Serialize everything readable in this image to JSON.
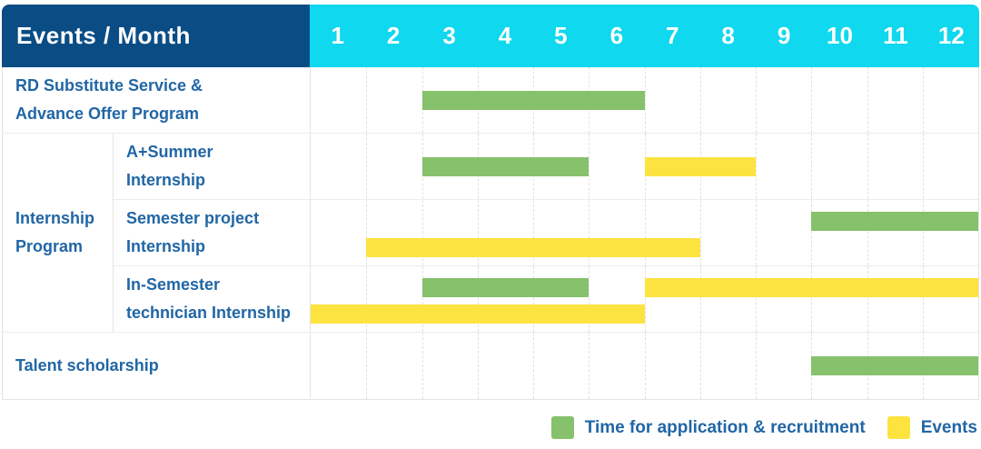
{
  "colors": {
    "header_navy": "#0a4d85",
    "header_cyan": "#10d8ee",
    "label_blue": "#2166a5",
    "application_green": "#86c16b",
    "events_yellow": "#fde340",
    "grid_line": "#e2e2e2"
  },
  "chart_data": {
    "type": "gantt",
    "title": "Events / Month",
    "unit": "month",
    "axis_range": [
      1,
      12
    ],
    "months": [
      "1",
      "2",
      "3",
      "4",
      "5",
      "6",
      "7",
      "8",
      "9",
      "10",
      "11",
      "12"
    ],
    "series": {
      "application": {
        "label": "Time for application & recruitment",
        "color": "#86c16b"
      },
      "events": {
        "label": "Events",
        "color": "#fde340"
      }
    },
    "rows": [
      {
        "label": "RD Substitute Service &\nAdvance Offer Program",
        "in_group": false,
        "bars": [
          {
            "series": "application",
            "start_month": 3,
            "end_month": 6,
            "track": "center"
          }
        ]
      },
      {
        "label": "A+Summer\nInternship",
        "in_group": true,
        "group": "Internship\nProgram",
        "group_span": 3,
        "bars": [
          {
            "series": "application",
            "start_month": 3,
            "end_month": 5,
            "track": "center"
          },
          {
            "series": "events",
            "start_month": 7,
            "end_month": 8,
            "track": "center"
          }
        ]
      },
      {
        "label": "Semester project\nInternship",
        "in_group": true,
        "bars": [
          {
            "series": "application",
            "start_month": 10,
            "end_month": 12,
            "track": "top"
          },
          {
            "series": "events",
            "start_month": 2,
            "end_month": 7,
            "track": "bottom"
          }
        ]
      },
      {
        "label": "In-Semester\ntechnician Internship",
        "in_group": true,
        "bars": [
          {
            "series": "application",
            "start_month": 3,
            "end_month": 5,
            "track": "top"
          },
          {
            "series": "events",
            "start_month": 7,
            "end_month": 12,
            "track": "top"
          },
          {
            "series": "events",
            "start_month": 1,
            "end_month": 6,
            "track": "bottom"
          }
        ]
      },
      {
        "label": "Talent scholarship",
        "in_group": false,
        "bars": [
          {
            "series": "application",
            "start_month": 10,
            "end_month": 12,
            "track": "center"
          }
        ]
      }
    ]
  },
  "legend": {
    "items": [
      {
        "series": "application",
        "label": "Time for application & recruitment"
      },
      {
        "series": "events",
        "label": "Events"
      }
    ]
  }
}
